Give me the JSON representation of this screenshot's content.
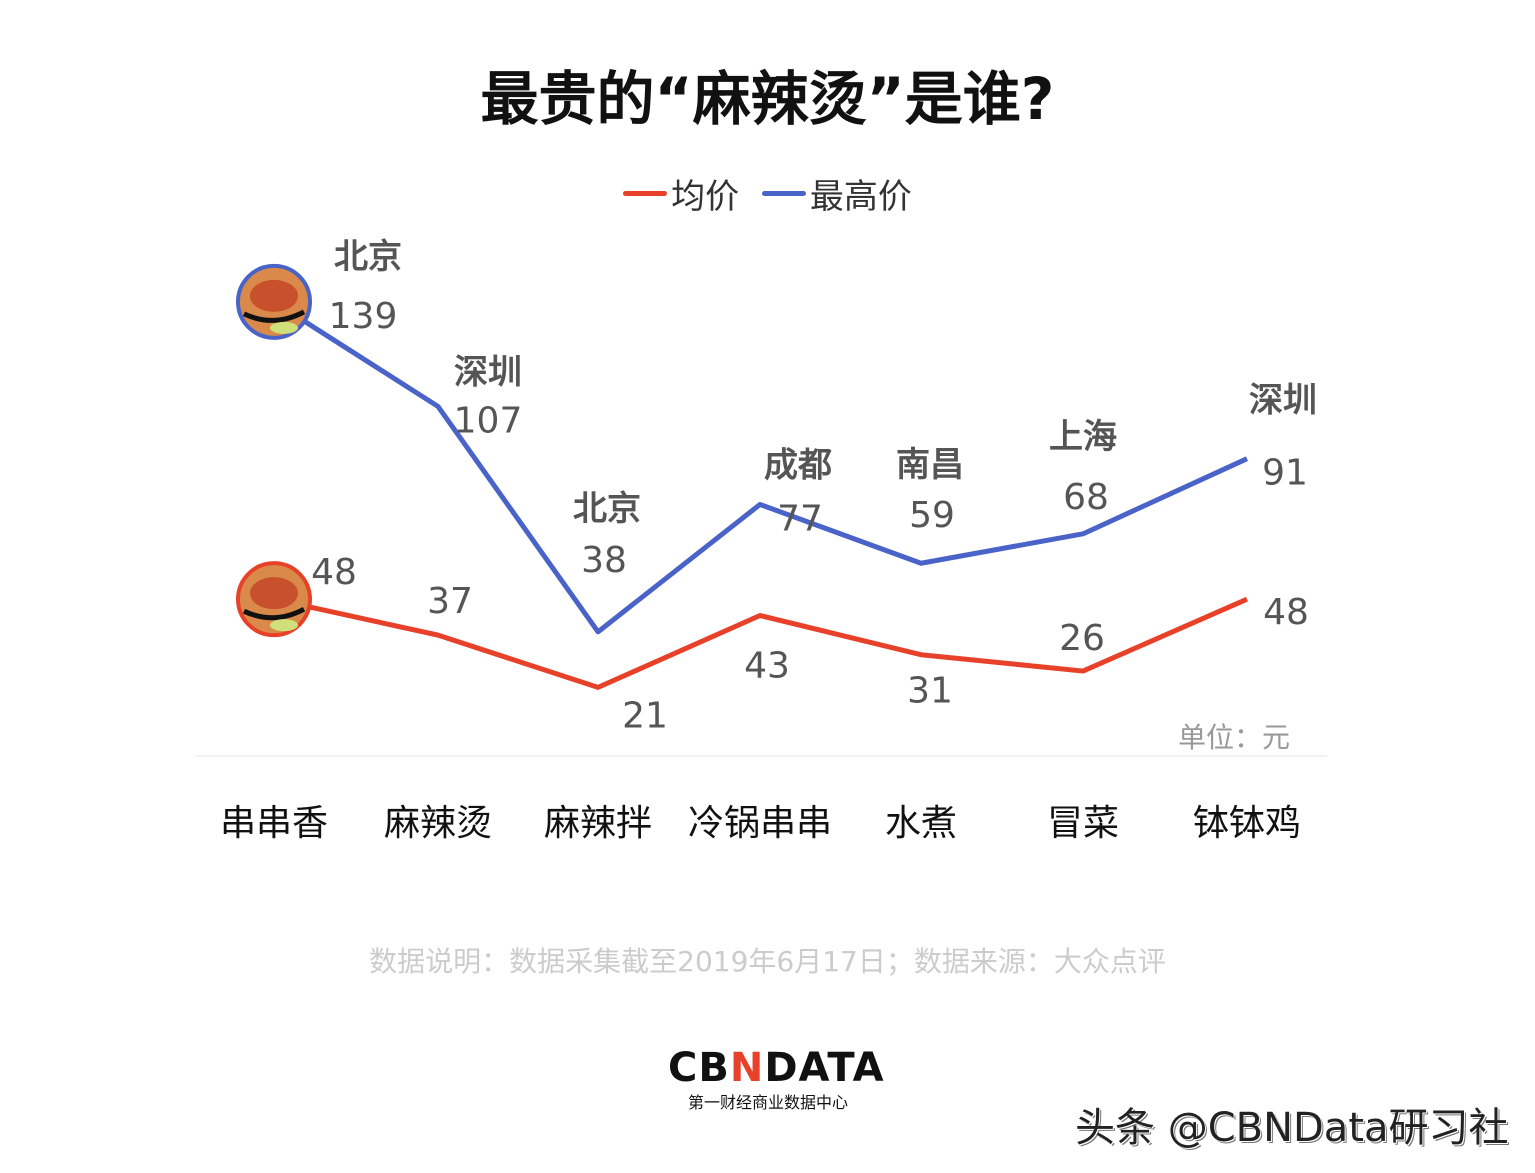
{
  "chart_data": {
    "type": "line",
    "title": "最贵的“麻辣烫”是谁?",
    "categories": [
      "串串香",
      "麻辣烫",
      "麻辣拌",
      "冷锅串串",
      "水煮",
      "冒菜",
      "钵钵鸡"
    ],
    "series": [
      {
        "name": "均价",
        "color": "#e8412a",
        "values": [
          48,
          37,
          21,
          43,
          31,
          26,
          48
        ]
      },
      {
        "name": "最高价",
        "color": "#4a63c8",
        "values": [
          139,
          107,
          38,
          77,
          59,
          68,
          91
        ],
        "cities": [
          "北京",
          "深圳",
          "北京",
          "成都",
          "南昌",
          "上海",
          "深圳"
        ]
      }
    ],
    "unit": "单位：元",
    "legend": "top",
    "grid": false
  },
  "note": "数据说明：数据采集截至2019年6月17日；数据来源：大众点评",
  "logo": {
    "main": "CBNDATA",
    "sub": "第一财经商业数据中心"
  },
  "watermark": "头条 @CBNData研习社"
}
